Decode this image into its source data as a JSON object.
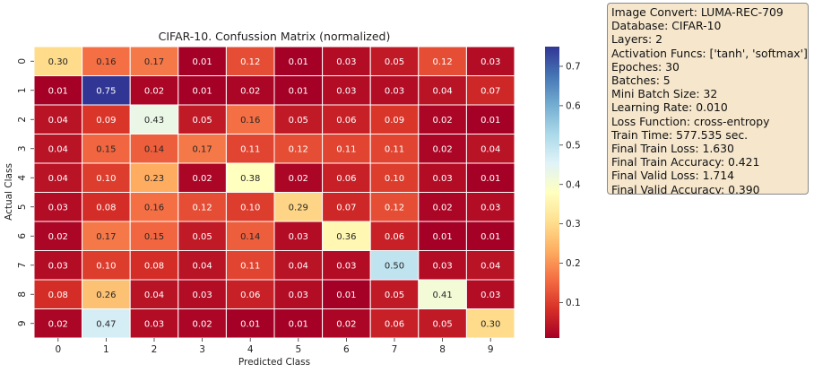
{
  "chart_data": {
    "type": "heatmap",
    "title": "CIFAR-10. Confussion Matrix (normalized)",
    "xlabel": "Predicted Class",
    "ylabel": "Actual Class",
    "x_categories": [
      "0",
      "1",
      "2",
      "3",
      "4",
      "5",
      "6",
      "7",
      "8",
      "9"
    ],
    "y_categories": [
      "0",
      "1",
      "2",
      "3",
      "4",
      "5",
      "6",
      "7",
      "8",
      "9"
    ],
    "matrix": [
      [
        0.3,
        0.16,
        0.17,
        0.01,
        0.12,
        0.01,
        0.03,
        0.05,
        0.12,
        0.03
      ],
      [
        0.01,
        0.75,
        0.02,
        0.01,
        0.02,
        0.01,
        0.03,
        0.03,
        0.04,
        0.07
      ],
      [
        0.04,
        0.09,
        0.43,
        0.05,
        0.16,
        0.05,
        0.06,
        0.09,
        0.02,
        0.01
      ],
      [
        0.04,
        0.15,
        0.14,
        0.17,
        0.11,
        0.12,
        0.11,
        0.11,
        0.02,
        0.04
      ],
      [
        0.04,
        0.1,
        0.23,
        0.02,
        0.38,
        0.02,
        0.06,
        0.1,
        0.03,
        0.01
      ],
      [
        0.03,
        0.08,
        0.16,
        0.12,
        0.1,
        0.29,
        0.07,
        0.12,
        0.02,
        0.03
      ],
      [
        0.02,
        0.17,
        0.15,
        0.05,
        0.14,
        0.03,
        0.36,
        0.06,
        0.01,
        0.01
      ],
      [
        0.03,
        0.1,
        0.08,
        0.04,
        0.11,
        0.04,
        0.03,
        0.5,
        0.03,
        0.04
      ],
      [
        0.08,
        0.26,
        0.04,
        0.03,
        0.06,
        0.03,
        0.01,
        0.05,
        0.41,
        0.03
      ],
      [
        0.02,
        0.47,
        0.03,
        0.02,
        0.01,
        0.01,
        0.02,
        0.06,
        0.05,
        0.3
      ]
    ],
    "colormap": "RdYlBu",
    "colorbar": {
      "range": [
        0.01,
        0.75
      ],
      "ticks": [
        0.1,
        0.2,
        0.3,
        0.4,
        0.5,
        0.6,
        0.7
      ],
      "tick_labels": [
        "0.1",
        "0.2",
        "0.3",
        "0.4",
        "0.5",
        "0.6",
        "0.7"
      ]
    },
    "cell_border_color": "#ffffff",
    "legend": "none"
  },
  "info_box": {
    "lines": [
      "Image Convert: LUMA-REC-709",
      "Database: CIFAR-10",
      "Layers: 2",
      "Activation Funcs: ['tanh', 'softmax']",
      "Epoches: 30",
      "Batches: 5",
      "Mini Batch Size: 32",
      "Learning Rate: 0.010",
      "Loss Function: cross-entropy",
      "Train Time: 577.535 sec.",
      "Final Train Loss: 1.630",
      "Final Train Accuracy: 0.421",
      "Final Valid Loss: 1.714",
      "Final Valid Accuracy: 0.390"
    ],
    "background": "#f5e6cc",
    "border": "#8a8a8a"
  }
}
